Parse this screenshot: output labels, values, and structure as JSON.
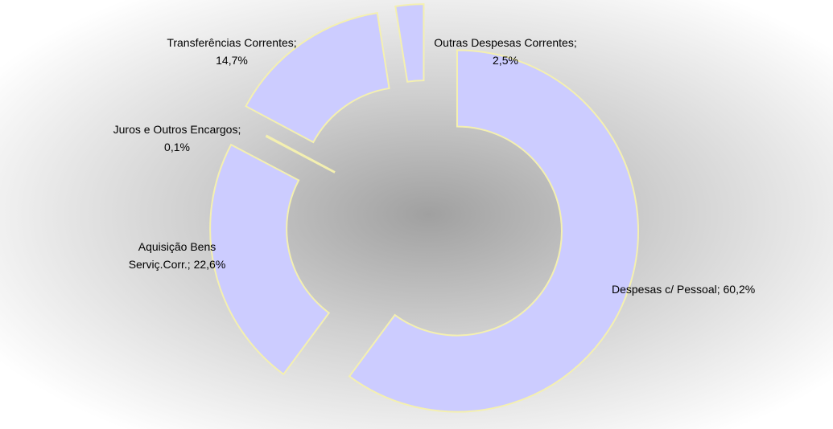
{
  "chart_data": {
    "type": "pie",
    "variant": "exploded-doughnut",
    "title": "",
    "legend": "none",
    "grid": false,
    "colors": {
      "slice_fill": "#ccccff",
      "slice_border": "#f4f0b0",
      "background_center": "#a0a0a0",
      "background_edge": "#ffffff"
    },
    "slices": [
      {
        "name": "Despesas c/ Pessoal",
        "value": 60.2,
        "label_lines": [
          "Despesas c/ Pessoal; 60,2%"
        ]
      },
      {
        "name": "Aquisição Bens Serviç.Corr.",
        "value": 22.6,
        "label_lines": [
          "Aquisição Bens",
          "Serviç.Corr.; 22,6%"
        ]
      },
      {
        "name": "Juros e Outros Encargos",
        "value": 0.1,
        "label_lines": [
          "Juros e Outros Encargos;",
          "0,1%"
        ]
      },
      {
        "name": "Transferências Correntes",
        "value": 14.7,
        "label_lines": [
          "Transferências Correntes;",
          "14,7%"
        ]
      },
      {
        "name": "Outras Despesas Correntes",
        "value": 2.5,
        "label_lines": [
          "Outras Despesas Correntes;",
          "2,5%"
        ]
      }
    ]
  }
}
